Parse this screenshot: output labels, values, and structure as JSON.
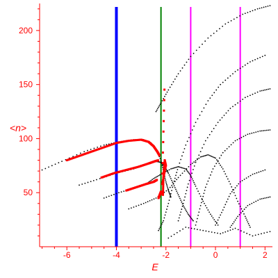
{
  "chart_data": {
    "type": "scatter",
    "title": "",
    "xlabel": "E",
    "ylabel": "<n>",
    "xlim": [
      -7.1,
      2.3
    ],
    "ylim": [
      0,
      225
    ],
    "x_ticks": [
      -6,
      -4,
      -2,
      0,
      2
    ],
    "y_ticks": [
      50,
      100,
      150,
      200
    ],
    "grid": false,
    "colors": {
      "axis": "#ff0000",
      "red_series": "#ff0000",
      "black_series": "#000000"
    },
    "vertical_lines": [
      {
        "x": -4.0,
        "color": "#0000ff",
        "style": "thick"
      },
      {
        "x": -2.2,
        "color": "#008000",
        "style": "medium"
      },
      {
        "x": -1.0,
        "color": "#ff00ff",
        "style": "medium"
      },
      {
        "x": 1.0,
        "color": "#ff00ff",
        "style": "medium"
      }
    ],
    "curves": [
      {
        "color": "#000000",
        "points": [
          [
            -7.0,
            71
          ],
          [
            -6.2,
            79
          ],
          [
            -5.3,
            88
          ],
          [
            -4.5,
            94
          ],
          [
            -3.9,
            97
          ],
          [
            -3.3,
            99
          ],
          [
            -2.9,
            99
          ],
          [
            -2.6,
            96
          ],
          [
            -2.4,
            90
          ],
          [
            -2.2,
            80
          ],
          [
            -2.1,
            70
          ],
          [
            -2.0,
            60
          ],
          [
            -1.9,
            52
          ],
          [
            -1.8,
            46
          ]
        ]
      },
      {
        "color": "#000000",
        "points": [
          [
            -5.5,
            57
          ],
          [
            -4.8,
            62
          ],
          [
            -4.0,
            68
          ],
          [
            -3.3,
            72
          ],
          [
            -2.8,
            76
          ],
          [
            -2.4,
            79
          ],
          [
            -2.2,
            78
          ],
          [
            -2.05,
            74
          ],
          [
            -1.9,
            68
          ],
          [
            -1.7,
            58
          ],
          [
            -1.5,
            48
          ],
          [
            -1.3,
            38
          ],
          [
            -1.1,
            30
          ],
          [
            -0.9,
            24
          ]
        ]
      },
      {
        "color": "#000000",
        "points": [
          [
            -4.5,
            45
          ],
          [
            -3.9,
            50
          ],
          [
            -3.3,
            54
          ],
          [
            -2.8,
            58
          ],
          [
            -2.5,
            63
          ],
          [
            -2.2,
            67
          ],
          [
            -1.8,
            72
          ],
          [
            -1.5,
            74
          ],
          [
            -1.2,
            72
          ],
          [
            -1.0,
            66
          ],
          [
            -0.8,
            56
          ],
          [
            -0.5,
            42
          ],
          [
            -0.2,
            30
          ],
          [
            0.1,
            20
          ]
        ]
      },
      {
        "color": "#000000",
        "points": [
          [
            -3.5,
            35
          ],
          [
            -2.9,
            40
          ],
          [
            -2.4,
            45
          ],
          [
            -1.9,
            53
          ],
          [
            -1.5,
            64
          ],
          [
            -1.0,
            76
          ],
          [
            -0.6,
            83
          ],
          [
            -0.3,
            85
          ],
          [
            0.0,
            82
          ],
          [
            0.3,
            72
          ],
          [
            0.6,
            58
          ],
          [
            0.9,
            42
          ],
          [
            1.2,
            28
          ],
          [
            1.4,
            18
          ]
        ]
      },
      {
        "color": "#000000",
        "points": [
          [
            -2.3,
            15
          ],
          [
            -2.1,
            24
          ],
          [
            -1.9,
            40
          ],
          [
            -1.7,
            58
          ],
          [
            -1.5,
            74
          ],
          [
            -1.2,
            94
          ],
          [
            -0.8,
            115
          ],
          [
            -0.3,
            135
          ],
          [
            0.2,
            150
          ],
          [
            0.8,
            162
          ],
          [
            1.4,
            171
          ],
          [
            2.0,
            177
          ]
        ]
      },
      {
        "color": "#000000",
        "points": [
          [
            -1.5,
            24
          ],
          [
            -1.3,
            40
          ],
          [
            -1.1,
            58
          ],
          [
            -0.8,
            78
          ],
          [
            -0.4,
            98
          ],
          [
            0.1,
            115
          ],
          [
            0.6,
            128
          ],
          [
            1.2,
            138
          ],
          [
            1.8,
            144
          ],
          [
            2.2,
            146
          ]
        ]
      },
      {
        "color": "#000000",
        "points": [
          [
            -2.4,
            125
          ],
          [
            -2.2,
            133
          ],
          [
            -1.9,
            145
          ],
          [
            -1.5,
            160
          ],
          [
            -1.0,
            176
          ],
          [
            -0.3,
            193
          ],
          [
            0.4,
            206
          ],
          [
            1.1,
            215
          ],
          [
            1.7,
            220
          ],
          [
            2.2,
            223
          ]
        ]
      },
      {
        "color": "#000000",
        "points": [
          [
            -0.8,
            20
          ],
          [
            -0.6,
            38
          ],
          [
            -0.4,
            55
          ],
          [
            -0.1,
            72
          ],
          [
            0.3,
            87
          ],
          [
            0.8,
            98
          ],
          [
            1.3,
            104
          ],
          [
            1.8,
            107
          ],
          [
            2.2,
            108
          ]
        ]
      },
      {
        "color": "#000000",
        "points": [
          [
            0.0,
            20
          ],
          [
            0.3,
            34
          ],
          [
            0.6,
            49
          ],
          [
            1.0,
            60
          ],
          [
            1.5,
            67
          ],
          [
            2.0,
            71
          ]
        ]
      },
      {
        "color": "#000000",
        "points": [
          [
            0.6,
            18
          ],
          [
            0.9,
            28
          ],
          [
            1.3,
            38
          ],
          [
            1.8,
            44
          ],
          [
            2.2,
            46
          ]
        ]
      },
      {
        "color": "#000000",
        "points": [
          [
            -1.9,
            8
          ],
          [
            -1.2,
            18
          ],
          [
            -0.5,
            15
          ],
          [
            0.2,
            12
          ],
          [
            0.8,
            17
          ],
          [
            1.5,
            10
          ],
          [
            2.2,
            14
          ]
        ]
      },
      {
        "color": "#ff0000",
        "points": [
          [
            -6.0,
            80
          ],
          [
            -5.5,
            84
          ],
          [
            -5.0,
            88
          ],
          [
            -4.5,
            92
          ],
          [
            -4.0,
            96
          ],
          [
            -3.5,
            98
          ],
          [
            -3.0,
            99
          ],
          [
            -2.7,
            97
          ],
          [
            -2.5,
            93
          ],
          [
            -2.35,
            88
          ],
          [
            -2.25,
            84
          ]
        ]
      },
      {
        "color": "#ff0000",
        "points": [
          [
            -4.6,
            64
          ],
          [
            -4.1,
            68
          ],
          [
            -3.6,
            71
          ],
          [
            -3.1,
            74
          ],
          [
            -2.7,
            77
          ],
          [
            -2.45,
            79
          ],
          [
            -2.3,
            80
          ]
        ]
      },
      {
        "color": "#ff0000",
        "points": [
          [
            -3.6,
            52
          ],
          [
            -3.2,
            55
          ],
          [
            -2.8,
            58
          ],
          [
            -2.5,
            60
          ],
          [
            -2.35,
            62
          ]
        ]
      },
      {
        "color": "#ff0000",
        "points": [
          [
            -2.3,
            45
          ],
          [
            -2.25,
            48
          ],
          [
            -2.2,
            51
          ],
          [
            -2.12,
            48
          ],
          [
            -2.1,
            65
          ],
          [
            -2.05,
            80
          ],
          [
            -2.0,
            75
          ],
          [
            -2.15,
            58
          ],
          [
            -2.05,
            155
          ]
        ]
      }
    ]
  }
}
